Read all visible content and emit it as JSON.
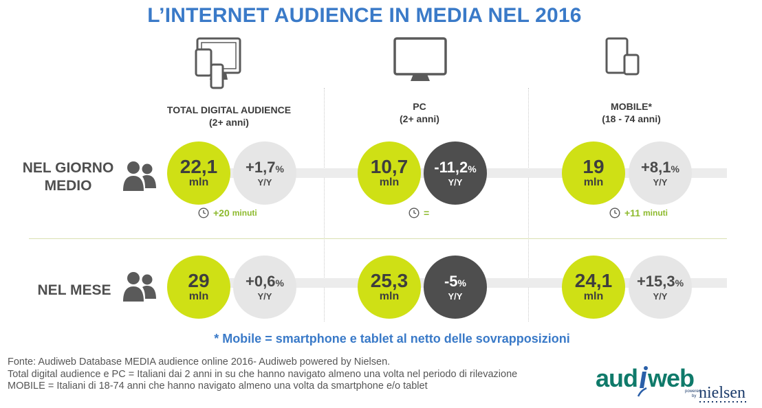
{
  "title": "L’INTERNET AUDIENCE IN MEDIA NEL 2016",
  "columns": [
    {
      "header": "TOTAL DIGITAL AUDIENCE",
      "subheader": "(2+ anni)",
      "icon": "multi-device-icon"
    },
    {
      "header": "PC",
      "subheader": "(2+ anni)",
      "icon": "monitor-icon"
    },
    {
      "header": "MOBILE*",
      "subheader": "(18 - 74 anni)",
      "icon": "tablet-phone-icon"
    }
  ],
  "rows": [
    {
      "label_line1": "NEL GIORNO",
      "label_line2": "MEDIO",
      "icon": "people-icon"
    },
    {
      "label_line1": "NEL MESE",
      "label_line2": "",
      "icon": "people-icon"
    }
  ],
  "chart_data": {
    "type": "table",
    "unit": "mln",
    "change_label": "Y/Y",
    "cells": [
      {
        "row": "NEL GIORNO MEDIO",
        "column": "TOTAL DIGITAL AUDIENCE",
        "value": "22,1",
        "change": "+1,7",
        "change_style": "light",
        "time": "+20",
        "time_unit": "minuti"
      },
      {
        "row": "NEL GIORNO MEDIO",
        "column": "PC",
        "value": "10,7",
        "change": "-11,2",
        "change_style": "dark",
        "time": "=",
        "time_unit": ""
      },
      {
        "row": "NEL GIORNO MEDIO",
        "column": "MOBILE*",
        "value": "19",
        "change": "+8,1",
        "change_style": "light",
        "time": "+11",
        "time_unit": "minuti"
      },
      {
        "row": "NEL MESE",
        "column": "TOTAL DIGITAL AUDIENCE",
        "value": "29",
        "change": "+0,6",
        "change_style": "light"
      },
      {
        "row": "NEL MESE",
        "column": "PC",
        "value": "25,3",
        "change": "-5",
        "change_style": "dark"
      },
      {
        "row": "NEL MESE",
        "column": "MOBILE*",
        "value": "24,1",
        "change": "+15,3",
        "change_style": "light"
      }
    ]
  },
  "pct_sign": "%",
  "colors": {
    "title": "#3a7ac8",
    "value_circle": "#cfe015",
    "change_light": "#e6e6e6",
    "change_dark": "#4e4e4e",
    "time_note": "#8dba2d"
  },
  "footnote": "* Mobile = smartphone e tablet al netto delle sovrapposizioni",
  "source": {
    "line1": "Fonte: Audiweb Database MEDIA audience online 2016- Audiweb powered by Nielsen.",
    "line2": "Total digital audience e PC = Italiani dai 2 anni in su che hanno navigato almeno una volta nel periodo di rilevazione",
    "line3": "MOBILE = Italiani di 18-74 anni che hanno navigato almeno una volta da smartphone e/o tablet"
  },
  "logo": {
    "audi": "aud",
    "web": "web",
    "powered": "powered",
    "by": "by",
    "nielsen": "nielsen"
  }
}
